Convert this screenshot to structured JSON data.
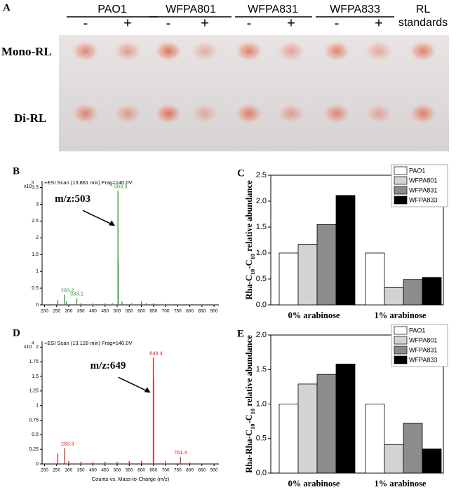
{
  "panel_a": {
    "label": "A",
    "strains": [
      "PAO1",
      "WFPA801",
      "WFPA831",
      "WFPA833"
    ],
    "signs": [
      "-",
      "+",
      "-",
      "+",
      "-",
      "+",
      "-",
      "+"
    ],
    "standards": [
      "RL",
      "standards"
    ],
    "rows": [
      "Mono-RL",
      "Di-RL"
    ]
  },
  "chart_data": [
    {
      "type": "stem",
      "label": "B",
      "title": "+ESI Scan (13.881 min) Frag=140.0V",
      "y_multiplier": "x10",
      "y_exponent": "5",
      "annotation": "m/z:503",
      "color": "#2e9e2e",
      "x": [
        255,
        283.2,
        290,
        333.2,
        350,
        400,
        450,
        480,
        503.3,
        504.3,
        520,
        560,
        600,
        620,
        650,
        700
      ],
      "values": [
        0.15,
        0.3,
        0.1,
        0.2,
        0.05,
        0.05,
        0.05,
        0.05,
        3.4,
        1.35,
        0.1,
        0.05,
        0.1,
        0.05,
        0.05,
        0.03
      ],
      "peak_labels": [
        null,
        "283.2",
        null,
        "333.2",
        null,
        null,
        null,
        null,
        "503.3",
        null,
        null,
        null,
        null,
        null,
        null,
        null
      ],
      "xlim": [
        190,
        920
      ],
      "xticks": [
        200,
        250,
        300,
        350,
        400,
        450,
        500,
        550,
        600,
        650,
        700,
        750,
        800,
        850,
        900
      ],
      "ylim": [
        0,
        3.7
      ],
      "yticks": [
        0,
        0.5,
        1,
        1.5,
        2,
        2.5,
        3,
        3.5
      ]
    },
    {
      "type": "bar",
      "label": "C",
      "ylabel": [
        {
          "text": "Rha-C"
        },
        {
          "text": "10",
          "sub": true
        },
        {
          "text": "-C"
        },
        {
          "text": "10",
          "sub": true
        },
        {
          "text": " relative abundance"
        }
      ],
      "categories": [
        "0% arabinose",
        "1% arabinose"
      ],
      "series": [
        {
          "name": "PAO1",
          "color": "#ffffff",
          "values": [
            1.0,
            1.0
          ]
        },
        {
          "name": "WFPA801",
          "color": "#d3d3d3",
          "values": [
            1.17,
            0.33
          ]
        },
        {
          "name": "WFPA831",
          "color": "#8c8c8c",
          "values": [
            1.55,
            0.49
          ]
        },
        {
          "name": "WFPA833",
          "color": "#000000",
          "values": [
            2.11,
            0.53
          ]
        }
      ],
      "ylim": [
        0,
        2.5
      ],
      "yticks": [
        {
          "value": 0,
          "label": "0.0"
        },
        {
          "value": 0.5,
          "label": "0.5"
        },
        {
          "value": 1,
          "label": "1.0"
        },
        {
          "value": 1.5,
          "label": "1.5"
        },
        {
          "value": 2,
          "label": "2.0"
        },
        {
          "value": 2.5,
          "label": "2.5"
        }
      ]
    },
    {
      "type": "stem",
      "label": "D",
      "title": "+ESI Scan (13.128 min) Frag=140.0V",
      "y_multiplier": "x10",
      "y_exponent": "4",
      "annotation": "m/z:649",
      "xlabel": "Counts vs. Mass-to-Charge (m/z)",
      "color": "#e02020",
      "x": [
        255,
        283.3,
        300,
        350,
        400,
        450,
        500,
        550,
        600,
        649.4,
        650.4,
        700,
        761.4,
        800
      ],
      "values": [
        0.18,
        0.27,
        0.05,
        0.04,
        0.04,
        0.04,
        0.04,
        0.05,
        0.05,
        1.82,
        1.45,
        0.05,
        0.12,
        0.03
      ],
      "peak_labels": [
        null,
        "283.3",
        null,
        null,
        null,
        null,
        null,
        null,
        null,
        "649.4",
        null,
        null,
        "761.4",
        null
      ],
      "xlim": [
        190,
        920
      ],
      "xticks": [
        200,
        250,
        300,
        350,
        400,
        450,
        500,
        550,
        600,
        650,
        700,
        750,
        800,
        850,
        900
      ],
      "ylim": [
        0,
        2.1
      ],
      "yticks": [
        0,
        0.25,
        0.5,
        0.75,
        1,
        1.25,
        1.5,
        1.75,
        2
      ]
    },
    {
      "type": "bar",
      "label": "E",
      "ylabel": [
        {
          "text": "Rha-Rha-C"
        },
        {
          "text": "10",
          "sub": true
        },
        {
          "text": "-C"
        },
        {
          "text": "10",
          "sub": true
        },
        {
          "text": " relative abundance"
        }
      ],
      "categories": [
        "0% arabinose",
        "1% arabinose"
      ],
      "series": [
        {
          "name": "PAO1",
          "color": "#ffffff",
          "values": [
            1.0,
            1.0
          ]
        },
        {
          "name": "WFPA801",
          "color": "#d3d3d3",
          "values": [
            1.29,
            0.41
          ]
        },
        {
          "name": "WFPA831",
          "color": "#8c8c8c",
          "values": [
            1.43,
            0.72
          ]
        },
        {
          "name": "WFPA833",
          "color": "#000000",
          "values": [
            1.58,
            0.35
          ]
        }
      ],
      "ylim": [
        0,
        2.0
      ],
      "yticks": [
        {
          "value": 0,
          "label": "0.0"
        },
        {
          "value": 0.5,
          "label": "0.5"
        },
        {
          "value": 1,
          "label": "1.0"
        },
        {
          "value": 1.5,
          "label": "1.5"
        },
        {
          "value": 2,
          "label": "2.0"
        }
      ]
    }
  ]
}
